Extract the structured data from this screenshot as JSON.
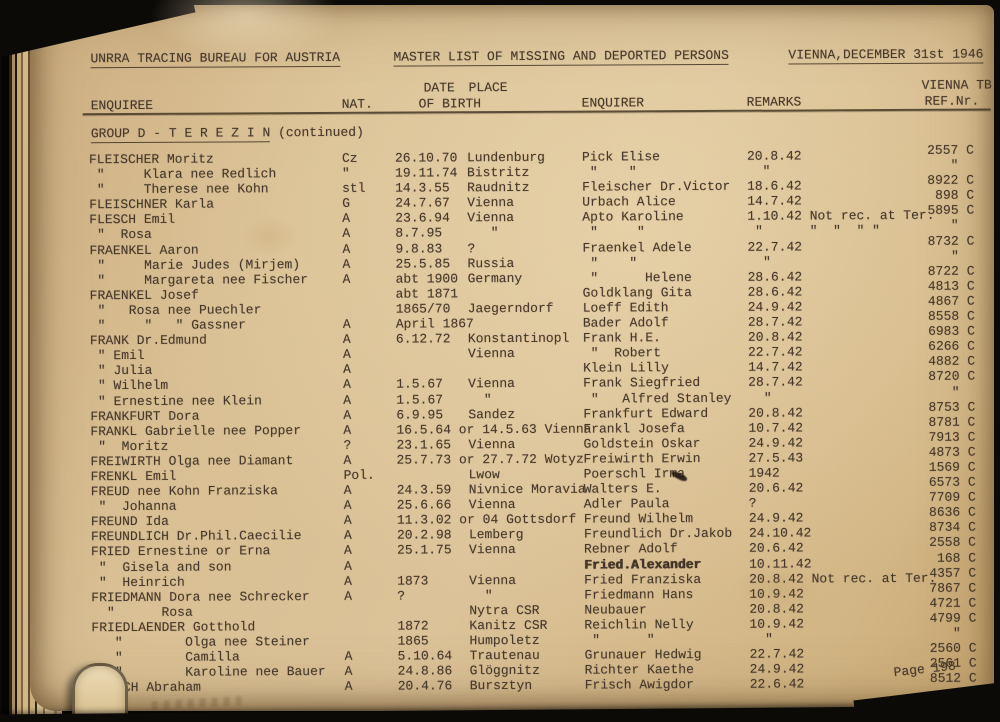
{
  "header": {
    "bureau": "UNRRA TRACING BUREAU FOR AUSTRIA",
    "list_title": "MASTER LIST OF MISSING AND DEPORTED PERSONS",
    "place_date": "VIENNA,DECEMBER 31st 1946"
  },
  "columns": {
    "enquiree": "ENQUIREE",
    "nat": "NAT.",
    "date_top": "DATE",
    "place_top": "PLACE",
    "of_birth": "OF BIRTH",
    "enquirer": "ENQUIRER",
    "remarks": "REMARKS",
    "ref_top": "VIENNA TB",
    "ref": "REF.Nr."
  },
  "group": {
    "title": "GROUP D - T E R E Z I N",
    "suffix": " (continued)"
  },
  "page_label": "Page 198",
  "colors": {
    "paper": "#d9bf93",
    "ink": "#46382a",
    "background": "#0c0a07"
  },
  "table": {
    "rows": [
      {
        "enquiree": "FLEISCHER Moritz",
        "nat": "Cz",
        "date_of_birth": "26.10.70",
        "place": "Lundenburg",
        "enquirer": "Pick Elise",
        "remarks": "20.8.42",
        "ref": "2557 C"
      },
      {
        "enquiree": " \"     Klara nee Redlich",
        "nat": "\"",
        "date_of_birth": "19.11.74",
        "place": "Bistritz",
        "enquirer": " \"    \"",
        "remarks": "  \"",
        "ref": "\"  "
      },
      {
        "enquiree": " \"     Therese nee Kohn",
        "nat": "stl",
        "date_of_birth": "14.3.55",
        "place": "Raudnitz",
        "enquirer": "Fleischer Dr.Victor",
        "remarks": "18.6.42",
        "ref": "8922 C"
      },
      {
        "enquiree": "FLEISCHNER Karla",
        "nat": "G",
        "date_of_birth": "24.7.67",
        "place": "Vienna",
        "enquirer": "Urbach Alice",
        "remarks": "14.7.42",
        "ref": "898 C"
      },
      {
        "enquiree": "FLESCH Emil",
        "nat": "A",
        "date_of_birth": "23.6.94",
        "place": "Vienna",
        "enquirer": "Apto Karoline",
        "remarks": "1.10.42 Not rec. at Ter.",
        "ref": "5895 C"
      },
      {
        "enquiree": " \"  Rosa",
        "nat": "A",
        "date_of_birth": "8.7.95",
        "place": "   \"",
        "enquirer": " \"     \"",
        "remarks": " \"      \"  \"  \" \"",
        "ref": "\"  "
      },
      {
        "enquiree": "FRAENKEL Aaron",
        "nat": "A",
        "date_of_birth": "9.8.83",
        "place": "?",
        "enquirer": "Fraenkel Adele",
        "remarks": "22.7.42",
        "ref": "8732 C"
      },
      {
        "enquiree": " \"     Marie Judes (Mirjem)",
        "nat": "A",
        "date_of_birth": "25.5.85",
        "place": "Russia",
        "enquirer": " \"    \"",
        "remarks": "  \"",
        "ref": "\"  "
      },
      {
        "enquiree": " \"     Margareta nee Fischer",
        "nat": "A",
        "date_of_birth": "abt 1900",
        "place": "Germany",
        "enquirer": " \"      Helene",
        "remarks": "28.6.42",
        "ref": "8722 C"
      },
      {
        "enquiree": "FRAENKEL Josef",
        "nat": "",
        "date_of_birth": "abt 1871",
        "place": "",
        "enquirer": "Goldklang Gita",
        "remarks": "28.6.42",
        "ref": "4813 C"
      },
      {
        "enquiree": " \"   Rosa nee Puechler",
        "nat": "",
        "date_of_birth": "1865/70",
        "place": "Jaegerndorf",
        "enquirer": "Loeff Edith",
        "remarks": "24.9.42",
        "ref": "4867 C"
      },
      {
        "enquiree": " \"     \"   \" Gassner",
        "nat": "A",
        "date_of_birth": "April 1867",
        "place": "",
        "enquirer": "Bader Adolf",
        "remarks": "28.7.42",
        "ref": "8558 C"
      },
      {
        "enquiree": "FRANK Dr.Edmund",
        "nat": "A",
        "date_of_birth": "6.12.72",
        "place": "Konstantinopl",
        "enquirer": "Frank H.E.",
        "remarks": "20.8.42",
        "ref": "6983 C"
      },
      {
        "enquiree": " \" Emil",
        "nat": "A",
        "date_of_birth": "",
        "place": "Vienna",
        "enquirer": " \"  Robert",
        "remarks": "22.7.42",
        "ref": "6266 C"
      },
      {
        "enquiree": " \" Julia",
        "nat": "A",
        "date_of_birth": "",
        "place": "",
        "enquirer": "Klein Lilly",
        "remarks": "14.7.42",
        "ref": "4882 C"
      },
      {
        "enquiree": " \" Wilhelm",
        "nat": "A",
        "date_of_birth": "1.5.67",
        "place": "Vienna",
        "enquirer": "Frank Siegfried",
        "remarks": "28.7.42",
        "ref": "8720 C"
      },
      {
        "enquiree": " \" Ernestine nee Klein",
        "nat": "A",
        "date_of_birth": "1.5.67",
        "place": "  \"",
        "enquirer": " \"   Alfred Stanley",
        "remarks": "  \"",
        "ref": "\"  "
      },
      {
        "enquiree": "FRANKFURT Dora",
        "nat": "A",
        "date_of_birth": "6.9.95",
        "place": "Sandez",
        "enquirer": "Frankfurt Edward",
        "remarks": "20.8.42",
        "ref": "8753 C"
      },
      {
        "enquiree": "FRANKL Gabrielle nee Popper",
        "nat": "A",
        "date_of_birth": "16.5.64 or 14.5.63 Vienna",
        "place": "",
        "enquirer": "Frankl Josefa",
        "remarks": "10.7.42",
        "ref": "8781 C"
      },
      {
        "enquiree": " \"  Moritz",
        "nat": "?",
        "date_of_birth": "23.1.65",
        "place": "Vienna",
        "enquirer": "Goldstein Oskar",
        "remarks": "24.9.42",
        "ref": "7913 C"
      },
      {
        "enquiree": "FREIWIRTH Olga nee Diamant",
        "nat": "A",
        "date_of_birth": "25.7.73 or 27.7.72 Wotyz",
        "place": "",
        "enquirer": "Freiwirth Erwin",
        "remarks": "27.5.43",
        "ref": "4873 C"
      },
      {
        "enquiree": "FRENKL Emil",
        "nat": "Pol.",
        "date_of_birth": "",
        "place": "Lwow",
        "enquirer": "Poerschl Irma",
        "remarks": "1942",
        "ref": "1569 C"
      },
      {
        "enquiree": "FREUD nee Kohn Franziska",
        "nat": "A",
        "date_of_birth": "24.3.59",
        "place": "Nivnice Moravia",
        "enquirer": "Walters E.",
        "remarks": "20.6.42",
        "ref": "6573 C"
      },
      {
        "enquiree": " \"  Johanna",
        "nat": "A",
        "date_of_birth": "25.6.66",
        "place": "Vienna",
        "enquirer": "Adler Paula",
        "remarks": "?",
        "ref": "7709 C"
      },
      {
        "enquiree": "FREUND Ida",
        "nat": "A",
        "date_of_birth": "11.3.02 or 04 Gottsdorf",
        "place": "",
        "enquirer": "Freund Wilhelm",
        "remarks": "24.9.42",
        "ref": "8636 C"
      },
      {
        "enquiree": "FREUNDLICH Dr.Phil.Caecilie",
        "nat": "A",
        "date_of_birth": "20.2.98",
        "place": "Lemberg",
        "enquirer": "Freundlich Dr.Jakob",
        "remarks": "24.10.42",
        "ref": "8734 C"
      },
      {
        "enquiree": "FRIED Ernestine or Erna",
        "nat": "A",
        "date_of_birth": "25.1.75",
        "place": "Vienna",
        "enquirer": "Rebner Adolf",
        "remarks": "20.6.42",
        "ref": "2558 C"
      },
      {
        "enquiree": " \"  Gisela and son",
        "nat": "A",
        "date_of_birth": "",
        "place": "",
        "enquirer": "Fried.Alexander",
        "remarks": "10.11.42",
        "ref": "168 C",
        "enquirer_bold": true
      },
      {
        "enquiree": " \"  Heinrich",
        "nat": "A",
        "date_of_birth": "1873",
        "place": "Vienna",
        "enquirer": "Fried Franziska",
        "remarks": "20.8.42 Not rec. at Ter.",
        "ref": "4357 C"
      },
      {
        "enquiree": "FRIEDMANN Dora nee Schrecker",
        "nat": "A",
        "date_of_birth": "?",
        "place": "  \"",
        "enquirer": "Friedmann Hans",
        "remarks": "10.9.42",
        "ref": "7867 C"
      },
      {
        "enquiree": "  \"      Rosa",
        "nat": "",
        "date_of_birth": "",
        "place": "Nytra CSR",
        "enquirer": "Neubauer",
        "remarks": "20.8.42",
        "ref": "4721 C"
      },
      {
        "enquiree": "FRIEDLAENDER Gotthold",
        "nat": "",
        "date_of_birth": "1872",
        "place": "Kanitz CSR",
        "enquirer": "Reichlin Nelly",
        "remarks": "10.9.42",
        "ref": "4799 C"
      },
      {
        "enquiree": "   \"        Olga nee Steiner",
        "nat": "",
        "date_of_birth": "1865",
        "place": "Humpoletz",
        "enquirer": " \"      \"",
        "remarks": "  \"",
        "ref": "\"  "
      },
      {
        "enquiree": "   \"        Camilla",
        "nat": "A",
        "date_of_birth": "5.10.64",
        "place": "Trautenau",
        "enquirer": "Grunauer Hedwig",
        "remarks": "22.7.42",
        "ref": "2560 C"
      },
      {
        "enquiree": "   \"        Karoline nee Bauer",
        "nat": "A",
        "date_of_birth": "24.8.86",
        "place": "Glöggnitz",
        "enquirer": "Richter Kaethe",
        "remarks": "24.9.42",
        "ref": "2561 C"
      },
      {
        "enquiree": "FRISCH Abraham",
        "nat": "A",
        "date_of_birth": "20.4.76",
        "place": "Bursztyn",
        "enquirer": "Frisch Awigdor",
        "remarks": "22.6.42",
        "ref": "8512 C"
      }
    ]
  }
}
